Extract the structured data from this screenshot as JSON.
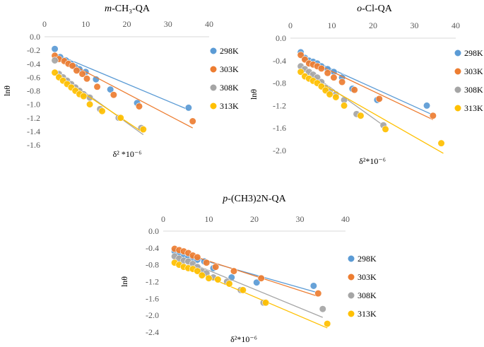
{
  "chart_data": [
    {
      "type": "scatter",
      "title_prefix": "m",
      "title_rest": "-CH₃-QA",
      "xlabel": "δ² *10⁻⁶",
      "ylabel": "lnθ",
      "xlim": [
        0,
        40
      ],
      "ylim": [
        -1.6,
        0.0
      ],
      "xticks": [
        "0",
        "10",
        "20",
        "30",
        "40"
      ],
      "yticks": [
        "0.0",
        "-0.2",
        "-0.4",
        "-0.6",
        "-0.8",
        "-1.0",
        "-1.2",
        "-1.4",
        "-1.6"
      ],
      "series": [
        {
          "name": "298K",
          "color": "#5B9BD5",
          "x": [
            2.5,
            3.8,
            5.2,
            6.5,
            7.5,
            8.5,
            10.0,
            12.5,
            16.0,
            22.5,
            35.0
          ],
          "y": [
            -0.18,
            -0.3,
            -0.35,
            -0.4,
            -0.45,
            -0.48,
            -0.52,
            -0.63,
            -0.78,
            -0.98,
            -1.05
          ],
          "line": [
            [
              2.5,
              -0.25
            ],
            [
              35.0,
              -1.08
            ]
          ]
        },
        {
          "name": "303K",
          "color": "#ED7D31",
          "x": [
            2.5,
            3.5,
            4.8,
            5.8,
            6.8,
            7.8,
            9.2,
            10.3,
            12.8,
            16.8,
            23.0,
            36.0
          ],
          "y": [
            -0.28,
            -0.33,
            -0.36,
            -0.4,
            -0.43,
            -0.5,
            -0.55,
            -0.62,
            -0.74,
            -0.86,
            -1.03,
            -1.25
          ],
          "line": [
            [
              2.5,
              -0.28
            ],
            [
              36.0,
              -1.35
            ]
          ]
        },
        {
          "name": "308K",
          "color": "#A5A5A5",
          "x": [
            2.5,
            3.5,
            4.5,
            5.5,
            6.5,
            7.5,
            8.5,
            9.5,
            11.0,
            13.5,
            18.0,
            23.5
          ],
          "y": [
            -0.35,
            -0.55,
            -0.6,
            -0.65,
            -0.7,
            -0.75,
            -0.8,
            -0.85,
            -0.9,
            -1.07,
            -1.2,
            -1.35
          ],
          "line": [
            [
              2.5,
              -0.5
            ],
            [
              24.0,
              -1.45
            ]
          ]
        },
        {
          "name": "313K",
          "color": "#FFC000",
          "x": [
            2.5,
            3.5,
            4.5,
            5.5,
            6.5,
            7.5,
            8.5,
            9.5,
            11.0,
            14.0,
            18.5,
            24.0
          ],
          "y": [
            -0.53,
            -0.6,
            -0.65,
            -0.7,
            -0.75,
            -0.8,
            -0.85,
            -0.88,
            -1.0,
            -1.1,
            -1.2,
            -1.37
          ],
          "line": [
            [
              2.5,
              -0.55
            ],
            [
              24.0,
              -1.42
            ]
          ]
        }
      ]
    },
    {
      "type": "scatter",
      "title_prefix": "o",
      "title_rest": "-Cl-QA",
      "xlabel": "δ²*10⁻⁶",
      "ylabel": "lnθ",
      "xlim": [
        0,
        40
      ],
      "ylim": [
        -2.0,
        0.0
      ],
      "xticks": [
        "0",
        "10",
        "20",
        "30",
        "40"
      ],
      "yticks": [
        "0.0",
        "-0.4",
        "-0.8",
        "-1.2",
        "-1.6",
        "-2.0"
      ],
      "series": [
        {
          "name": "298K",
          "color": "#5B9BD5",
          "x": [
            2.5,
            3.5,
            4.5,
            5.5,
            6.5,
            7.5,
            9.0,
            10.5,
            12.5,
            15.0,
            21.0,
            33.0
          ],
          "y": [
            -0.25,
            -0.35,
            -0.4,
            -0.42,
            -0.45,
            -0.5,
            -0.55,
            -0.6,
            -0.7,
            -0.9,
            -1.1,
            -1.2
          ],
          "line": [
            [
              2.5,
              -0.3
            ],
            [
              34.0,
              -1.35
            ]
          ]
        },
        {
          "name": "303K",
          "color": "#ED7D31",
          "x": [
            2.5,
            3.5,
            4.5,
            5.5,
            6.5,
            7.5,
            9.0,
            10.5,
            12.5,
            15.5,
            21.5,
            34.5
          ],
          "y": [
            -0.3,
            -0.38,
            -0.45,
            -0.47,
            -0.5,
            -0.54,
            -0.62,
            -0.7,
            -0.78,
            -0.92,
            -1.08,
            -1.38
          ],
          "line": [
            [
              2.5,
              -0.33
            ],
            [
              34.5,
              -1.45
            ]
          ]
        },
        {
          "name": "308K",
          "color": "#A5A5A5",
          "x": [
            2.5,
            3.5,
            4.5,
            5.5,
            6.5,
            7.5,
            8.5,
            9.5,
            11.0,
            13.0,
            16.0,
            22.5
          ],
          "y": [
            -0.5,
            -0.55,
            -0.6,
            -0.65,
            -0.7,
            -0.78,
            -0.88,
            -0.95,
            -1.0,
            -1.1,
            -1.35,
            -1.55
          ],
          "line": [
            [
              2.5,
              -0.5
            ],
            [
              23.0,
              -1.58
            ]
          ]
        },
        {
          "name": "313K",
          "color": "#FFC000",
          "x": [
            2.5,
            3.5,
            4.5,
            5.5,
            6.5,
            7.5,
            8.5,
            9.5,
            11.0,
            13.0,
            17.0,
            23.0,
            36.5
          ],
          "y": [
            -0.6,
            -0.68,
            -0.72,
            -0.76,
            -0.8,
            -0.86,
            -0.93,
            -1.0,
            -1.05,
            -1.2,
            -1.38,
            -1.62,
            -1.87
          ],
          "line": [
            [
              2.5,
              -0.6
            ],
            [
              37.0,
              -2.05
            ]
          ]
        }
      ]
    },
    {
      "type": "scatter",
      "title_prefix": "p",
      "title_rest": "-(CH3)2N-QA",
      "xlabel": "δ²*10⁻⁶",
      "ylabel": "lnθ",
      "xlim": [
        0,
        40
      ],
      "ylim": [
        -2.4,
        0.0
      ],
      "xticks": [
        "0",
        "10",
        "20",
        "30",
        "40"
      ],
      "yticks": [
        "0.0",
        "-0.4",
        "-0.8",
        "-1.2",
        "-1.6",
        "-2.0",
        "-2.4"
      ],
      "series": [
        {
          "name": "298K",
          "color": "#5B9BD5",
          "x": [
            2.5,
            3.5,
            4.5,
            5.5,
            6.5,
            7.5,
            9.0,
            11.0,
            15.0,
            20.5,
            33.0
          ],
          "y": [
            -0.48,
            -0.55,
            -0.6,
            -0.62,
            -0.65,
            -0.68,
            -0.72,
            -0.88,
            -1.1,
            -1.22,
            -1.3
          ],
          "line": [
            [
              2.5,
              -0.5
            ],
            [
              33.5,
              -1.45
            ]
          ]
        },
        {
          "name": "303K",
          "color": "#ED7D31",
          "x": [
            2.5,
            3.5,
            4.5,
            5.5,
            6.5,
            7.5,
            9.5,
            11.5,
            15.5,
            21.5,
            34.0
          ],
          "y": [
            -0.42,
            -0.45,
            -0.48,
            -0.52,
            -0.58,
            -0.62,
            -0.75,
            -0.85,
            -0.95,
            -1.12,
            -1.48
          ],
          "line": [
            [
              2.5,
              -0.45
            ],
            [
              34.0,
              -1.55
            ]
          ]
        },
        {
          "name": "308K",
          "color": "#A5A5A5",
          "x": [
            2.5,
            3.5,
            4.5,
            5.5,
            6.5,
            7.5,
            8.5,
            9.5,
            11.0,
            14.0,
            17.0,
            22.0,
            35.0
          ],
          "y": [
            -0.6,
            -0.65,
            -0.7,
            -0.72,
            -0.78,
            -0.85,
            -0.95,
            -1.0,
            -1.1,
            -1.2,
            -1.4,
            -1.7,
            -1.85
          ],
          "line": [
            [
              2.5,
              -0.6
            ],
            [
              35.0,
              -2.05
            ]
          ]
        },
        {
          "name": "313K",
          "color": "#FFC000",
          "x": [
            2.5,
            3.5,
            4.5,
            5.5,
            6.5,
            7.5,
            8.5,
            10.0,
            12.0,
            14.5,
            17.5,
            22.5,
            36.0
          ],
          "y": [
            -0.75,
            -0.8,
            -0.85,
            -0.88,
            -0.9,
            -0.95,
            -1.05,
            -1.12,
            -1.15,
            -1.25,
            -1.4,
            -1.7,
            -2.2
          ],
          "line": [
            [
              2.5,
              -0.75
            ],
            [
              36.0,
              -2.3
            ]
          ]
        }
      ]
    }
  ]
}
